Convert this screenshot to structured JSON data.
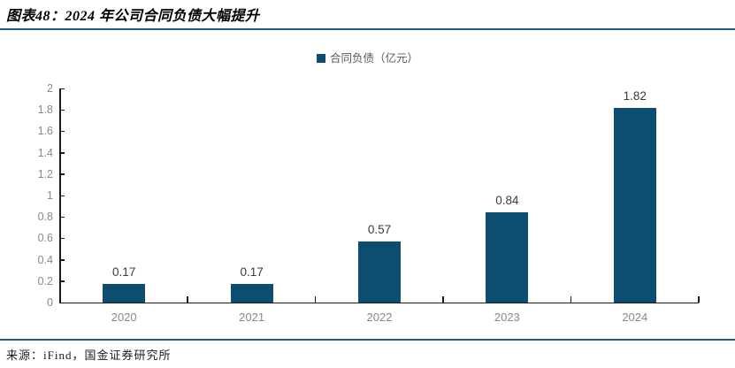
{
  "header": {
    "title": "图表48：2024 年公司合同负债大幅提升"
  },
  "legend": {
    "label": "合同负债（亿元）"
  },
  "footer": {
    "source": "来源：iFind，国金证券研究所"
  },
  "colors": {
    "bar": "#0d4d70",
    "rule": "#1f5c87",
    "axis": "#1a1a1a",
    "tick_label": "#898989",
    "data_label": "#3a3a3a",
    "legend_text": "#595959"
  },
  "chart_data": {
    "type": "bar",
    "title": "图表48：2024 年公司合同负债大幅提升",
    "categories": [
      "2020",
      "2021",
      "2022",
      "2023",
      "2024"
    ],
    "series": [
      {
        "name": "合同负债（亿元）",
        "values": [
          0.17,
          0.17,
          0.57,
          0.84,
          1.82
        ]
      }
    ],
    "data_labels": [
      "0.17",
      "0.17",
      "0.57",
      "0.84",
      "1.82"
    ],
    "xlabel": "",
    "ylabel": "",
    "ylim": [
      0,
      2
    ],
    "ytick_step": 0.2,
    "grid": false,
    "legend_position": "top-center",
    "source": "来源：iFind，国金证券研究所"
  }
}
